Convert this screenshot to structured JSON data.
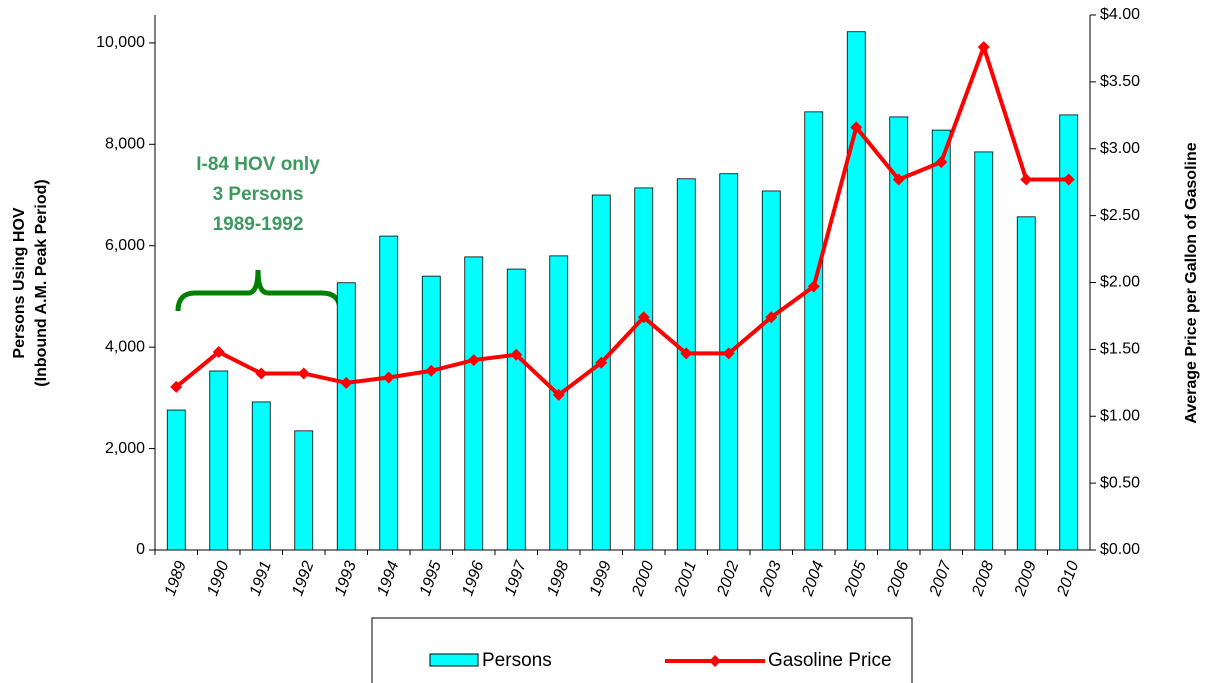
{
  "chart_data": {
    "type": "bar_line",
    "categories": [
      "1989",
      "1990",
      "1991",
      "1992",
      "1993",
      "1994",
      "1995",
      "1996",
      "1997",
      "1998",
      "1999",
      "2000",
      "2001",
      "2002",
      "2003",
      "2004",
      "2005",
      "2006",
      "2007",
      "2008",
      "2009",
      "2010"
    ],
    "series": [
      {
        "name": "Persons",
        "color": "#00FFFF",
        "type": "bar",
        "axis": "y",
        "values": [
          2760,
          3530,
          2920,
          2350,
          5270,
          6190,
          5400,
          5780,
          5540,
          5800,
          7000,
          7140,
          7320,
          7420,
          7080,
          8640,
          10220,
          8540,
          8280,
          7850,
          6570,
          8580
        ]
      },
      {
        "name": "Gasoline Price",
        "color": "#FF0000",
        "type": "line",
        "axis": "y2",
        "values": [
          1.22,
          1.48,
          1.32,
          1.32,
          1.25,
          1.29,
          1.34,
          1.42,
          1.46,
          1.16,
          1.4,
          1.74,
          1.47,
          1.47,
          1.74,
          1.97,
          3.16,
          2.77,
          2.9,
          3.76,
          2.77,
          2.77
        ]
      }
    ],
    "ylabel": [
      "Persons Using HOV",
      "(Inbound A.M. Peak Period)"
    ],
    "y2label": "Average Price per Gallon of Gasoline",
    "annotation": [
      "I-84 HOV only",
      "3 Persons",
      "1989-1992"
    ],
    "ylim": [
      0,
      10550
    ],
    "yticks": [
      0,
      {
        "value": 2000,
        "label": "2,000"
      },
      {
        "value": 4000,
        "label": "4,000"
      },
      {
        "value": 6000,
        "label": "6,000"
      },
      {
        "value": 8000,
        "label": "8,000"
      },
      {
        "value": 10000,
        "label": "10,000"
      }
    ],
    "y2lim": [
      0,
      4
    ],
    "y2ticks": [
      {
        "value": 0,
        "label": "$0.00"
      },
      {
        "value": 0.5,
        "label": "$0.50"
      },
      {
        "value": 1,
        "label": "$1.00"
      },
      {
        "value": 1.5,
        "label": "$1.50"
      },
      {
        "value": 2,
        "label": "$2.00"
      },
      {
        "value": 2.5,
        "label": "$2.50"
      },
      {
        "value": 3,
        "label": "$3.00"
      },
      {
        "value": 3.5,
        "label": "$3.50"
      },
      {
        "value": 4,
        "label": "$4.00"
      }
    ],
    "legend": "bottom"
  }
}
